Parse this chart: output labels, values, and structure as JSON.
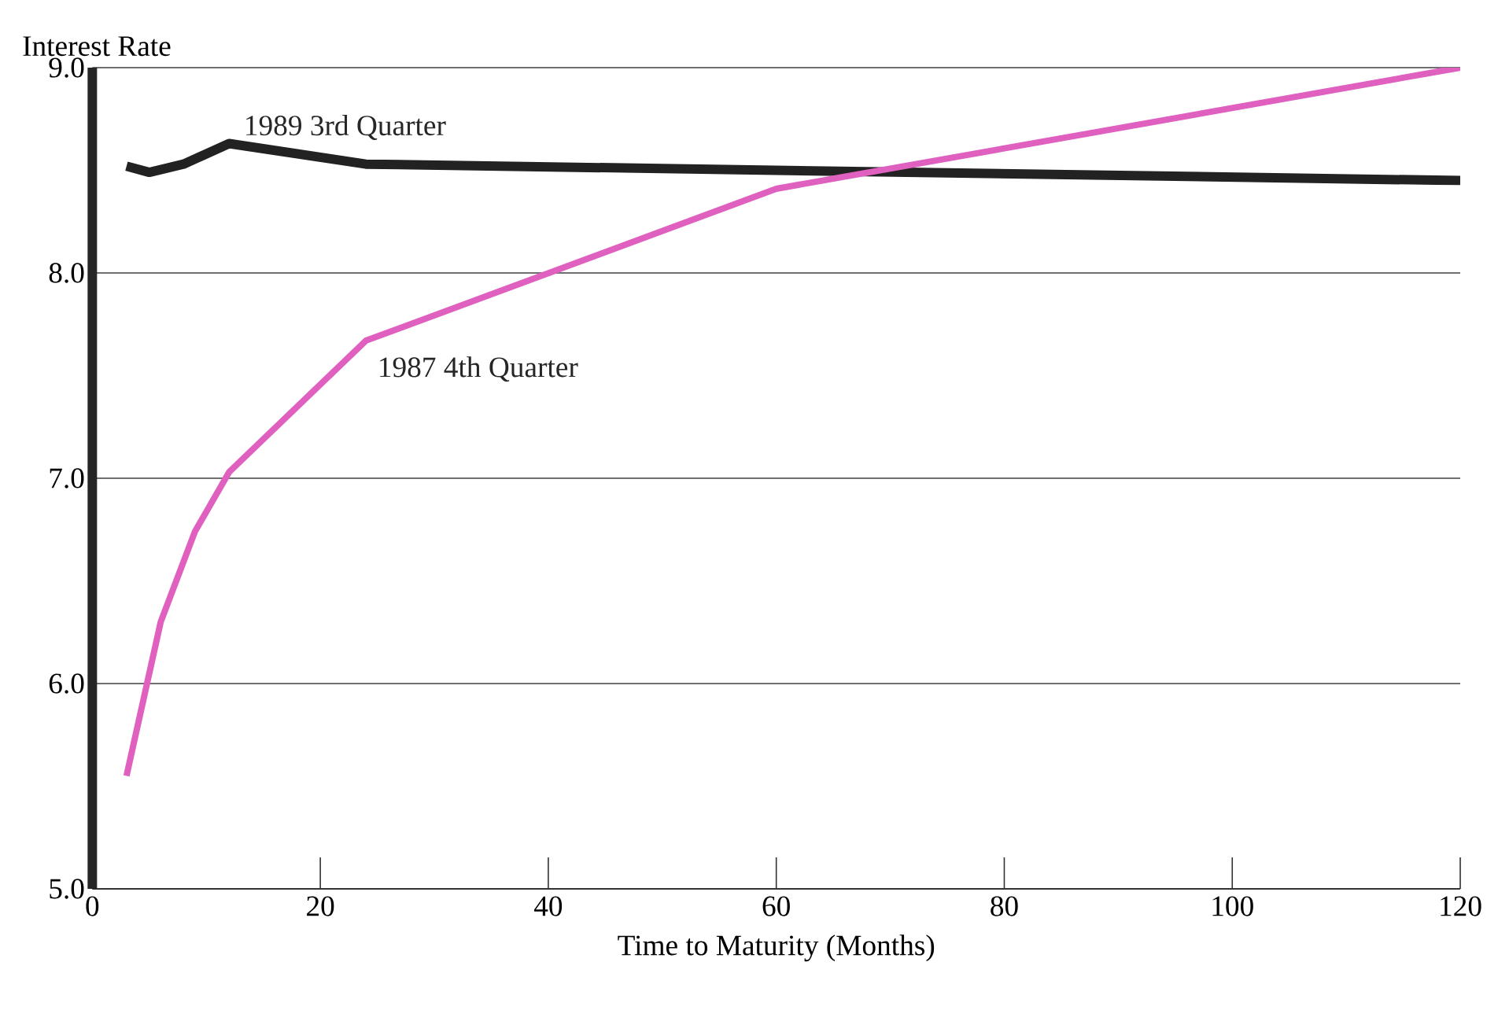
{
  "chart_data": {
    "type": "line",
    "xlabel": "Time to Maturity (Months)",
    "ylabel": "Interest Rate",
    "xlim": [
      0,
      120
    ],
    "xticks": [
      0,
      20,
      40,
      60,
      80,
      100,
      120
    ],
    "ylim": [
      5,
      9
    ],
    "yticks": [
      {
        "value": 5,
        "label": "5.0"
      },
      {
        "value": 6,
        "label": "6.0"
      },
      {
        "value": 7,
        "label": "7.0"
      },
      {
        "value": 8,
        "label": "8.0"
      },
      {
        "value": 9,
        "label": "9.0"
      }
    ],
    "grid": "y",
    "legend": false,
    "marker": "none",
    "line_style": "solid",
    "series": [
      {
        "name": "1989 3rd Quarter",
        "color": "#222222",
        "x": [
          3,
          5,
          8,
          12,
          24,
          120
        ],
        "values": [
          8.52,
          8.49,
          8.53,
          8.63,
          8.53,
          8.45
        ]
      },
      {
        "name": "1987 4th Quarter",
        "color": "#e060c0",
        "x": [
          3,
          6,
          9,
          12,
          24,
          60,
          120
        ],
        "values": [
          5.55,
          6.3,
          6.74,
          7.03,
          7.67,
          8.41,
          9.0
        ]
      }
    ]
  }
}
